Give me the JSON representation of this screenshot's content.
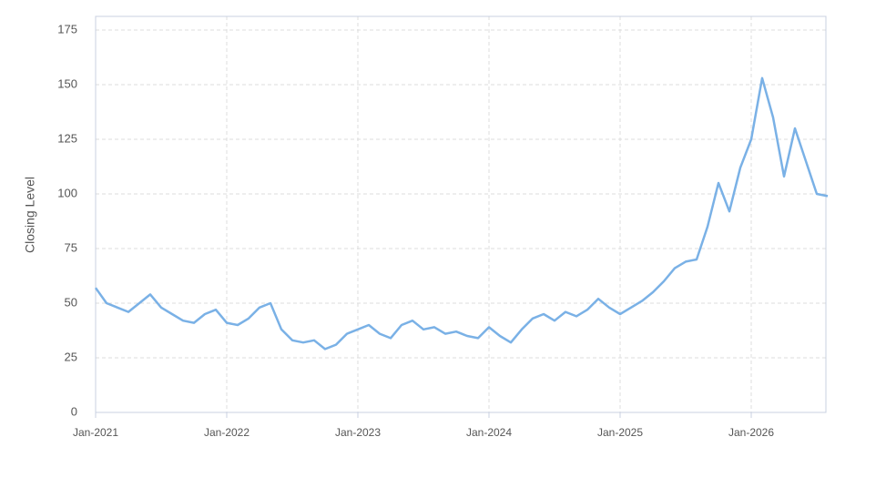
{
  "chart_data": {
    "type": "line",
    "y_label": "Closing Level",
    "x": [
      "2021-01",
      "2021-02",
      "2021-03",
      "2021-04",
      "2021-05",
      "2021-06",
      "2021-07",
      "2021-08",
      "2021-09",
      "2021-10",
      "2021-11",
      "2021-12",
      "2022-01",
      "2022-02",
      "2022-03",
      "2022-04",
      "2022-05",
      "2022-06",
      "2022-07",
      "2022-08",
      "2022-09",
      "2022-10",
      "2022-11",
      "2022-12",
      "2023-01",
      "2023-02",
      "2023-03",
      "2023-04",
      "2023-05",
      "2023-06",
      "2023-07",
      "2023-08",
      "2023-09",
      "2023-10",
      "2023-11",
      "2023-12",
      "2024-01",
      "2024-02",
      "2024-03",
      "2024-04",
      "2024-05",
      "2024-06",
      "2024-07",
      "2024-08",
      "2024-09",
      "2024-10",
      "2024-11",
      "2024-12",
      "2025-01",
      "2025-02",
      "2025-03",
      "2025-04",
      "2025-05",
      "2025-06",
      "2025-07",
      "2025-08",
      "2025-09",
      "2025-10",
      "2025-11",
      "2025-12",
      "2026-01",
      "2026-02",
      "2026-03",
      "2026-04",
      "2026-05",
      "2026-06",
      "2026-07",
      "2026-08"
    ],
    "series": [
      {
        "color": "#7ab1e6",
        "values": [
          57,
          50,
          48,
          46,
          50,
          54,
          48,
          45,
          42,
          41,
          45,
          47,
          41,
          40,
          43,
          48,
          50,
          38,
          33,
          32,
          33,
          29,
          31,
          36,
          38,
          40,
          36,
          34,
          40,
          42,
          38,
          39,
          36,
          37,
          35,
          34,
          39,
          35,
          32,
          38,
          43,
          45,
          42,
          46,
          44,
          47,
          52,
          48,
          45,
          48,
          51,
          55,
          60,
          66,
          69,
          70,
          85,
          105,
          92,
          112,
          125,
          153,
          135,
          108,
          130,
          115,
          100,
          99
        ]
      }
    ],
    "xlim": [
      "2021-01",
      "2026-08"
    ],
    "xticks": [
      {
        "value": "2021-01",
        "label": "Jan-2021"
      },
      {
        "value": "2022-01",
        "label": "Jan-2022"
      },
      {
        "value": "2023-01",
        "label": "Jan-2023"
      },
      {
        "value": "2024-01",
        "label": "Jan-2024"
      },
      {
        "value": "2025-01",
        "label": "Jan-2025"
      },
      {
        "value": "2026-01",
        "label": "Jan-2026"
      }
    ],
    "ylim": [
      0,
      181.25
    ],
    "yticks": [
      0,
      25,
      50,
      75,
      100,
      125,
      150,
      175
    ],
    "grid": true
  }
}
